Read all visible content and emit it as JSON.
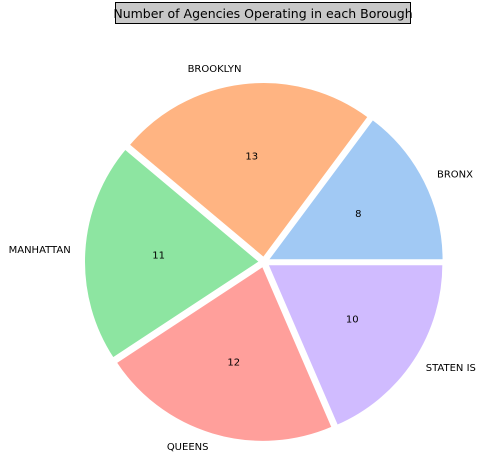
{
  "chart_data": {
    "type": "pie",
    "title": "Number of Agencies Operating in each Borough",
    "start_angle_deg": 0,
    "direction": "counterclockwise",
    "slices": [
      {
        "label": "BRONX",
        "value": 8,
        "color": "#a1c9f4"
      },
      {
        "label": "BROOKLYN",
        "value": 13,
        "color": "#ffb482"
      },
      {
        "label": "MANHATTAN",
        "value": 11,
        "color": "#8de5a1"
      },
      {
        "label": "QUEENS",
        "value": 12,
        "color": "#ff9f9b"
      },
      {
        "label": "STATEN IS",
        "value": 10,
        "color": "#d0bbff"
      }
    ],
    "legend": "none",
    "show_values": true
  }
}
